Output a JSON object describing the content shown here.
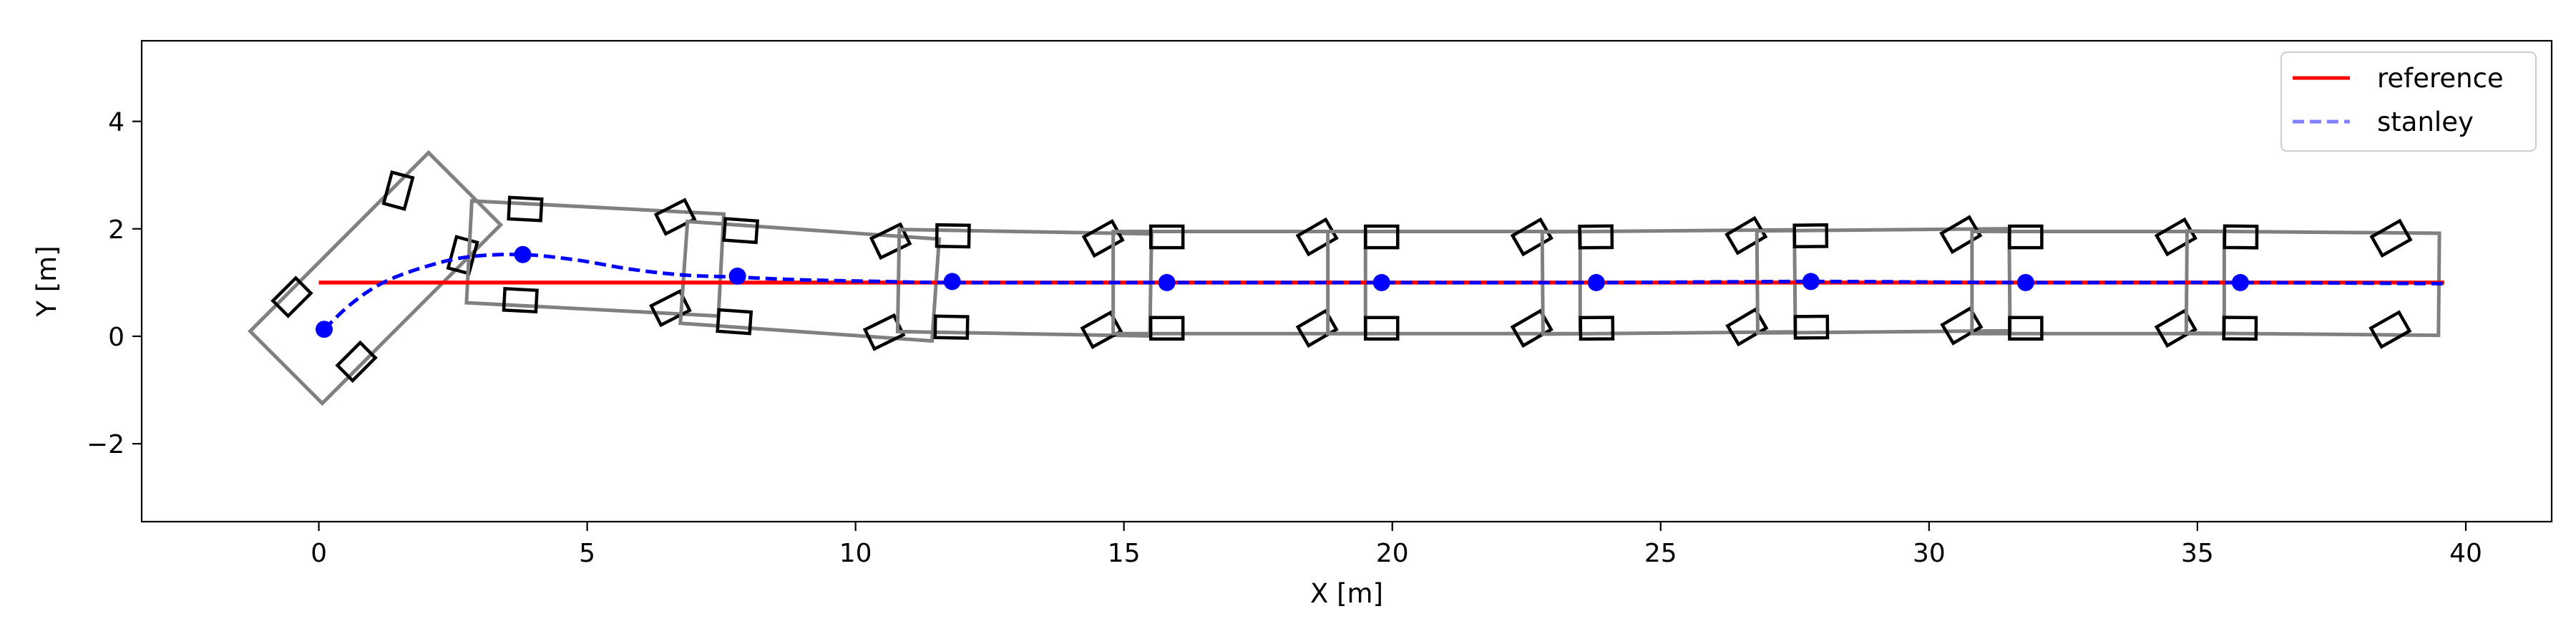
{
  "chart_data": {
    "type": "line",
    "xlabel": "X [m]",
    "ylabel": "Y [m]",
    "xlim": [
      -3.3,
      41.6
    ],
    "ylim": [
      -3.45,
      5.5
    ],
    "xticks": [
      0,
      5,
      10,
      15,
      20,
      25,
      30,
      35,
      40
    ],
    "yticks": [
      -2,
      0,
      2,
      4
    ],
    "ytick_labels": [
      "−2",
      "0",
      "2",
      "4"
    ],
    "grid": false,
    "legend_position": "top-right",
    "series": [
      {
        "name": "reference",
        "style": "solid",
        "color": "#ff0000",
        "x": [
          0,
          39.6
        ],
        "y": [
          1.0,
          1.0
        ]
      },
      {
        "name": "stanley",
        "style": "dashed",
        "color": "#0000ff",
        "legend_color": "#7f7fff",
        "x": [
          0.1,
          0.6,
          1.2,
          2.0,
          2.8,
          3.8,
          4.8,
          5.8,
          6.8,
          7.8,
          9.0,
          10.5,
          11.8,
          15.8,
          19.8,
          23.8,
          27.8,
          31.8,
          35.8,
          39.6
        ],
        "y": [
          0.13,
          0.6,
          1.0,
          1.3,
          1.48,
          1.52,
          1.42,
          1.25,
          1.14,
          1.1,
          1.05,
          1.02,
          1.0,
          1.0,
          1.0,
          1.0,
          1.02,
          1.0,
          1.0,
          0.98
        ]
      }
    ],
    "vehicle_poses": [
      {
        "x": 0.1,
        "y": 0.13,
        "yaw_deg": 45
      },
      {
        "x": 3.8,
        "y": 1.52,
        "yaw_deg": -3
      },
      {
        "x": 7.8,
        "y": 1.12,
        "yaw_deg": -4
      },
      {
        "x": 11.8,
        "y": 1.02,
        "yaw_deg": -1
      },
      {
        "x": 15.8,
        "y": 1.0,
        "yaw_deg": 0
      },
      {
        "x": 19.8,
        "y": 1.0,
        "yaw_deg": 0
      },
      {
        "x": 23.8,
        "y": 1.0,
        "yaw_deg": 0.5
      },
      {
        "x": 27.8,
        "y": 1.02,
        "yaw_deg": 0.5
      },
      {
        "x": 31.8,
        "y": 1.0,
        "yaw_deg": 0
      },
      {
        "x": 35.8,
        "y": 1.0,
        "yaw_deg": -0.5
      }
    ],
    "vehicle_model": {
      "rear_overhang_m": 1.0,
      "front_overhang_m": 3.7,
      "half_width_m": 0.95,
      "wheelbase_m": 2.8,
      "wheel_track_half_m": 0.85,
      "wheel_length_m": 0.6,
      "wheel_width_m": 0.4,
      "steer_deg": 30
    }
  }
}
